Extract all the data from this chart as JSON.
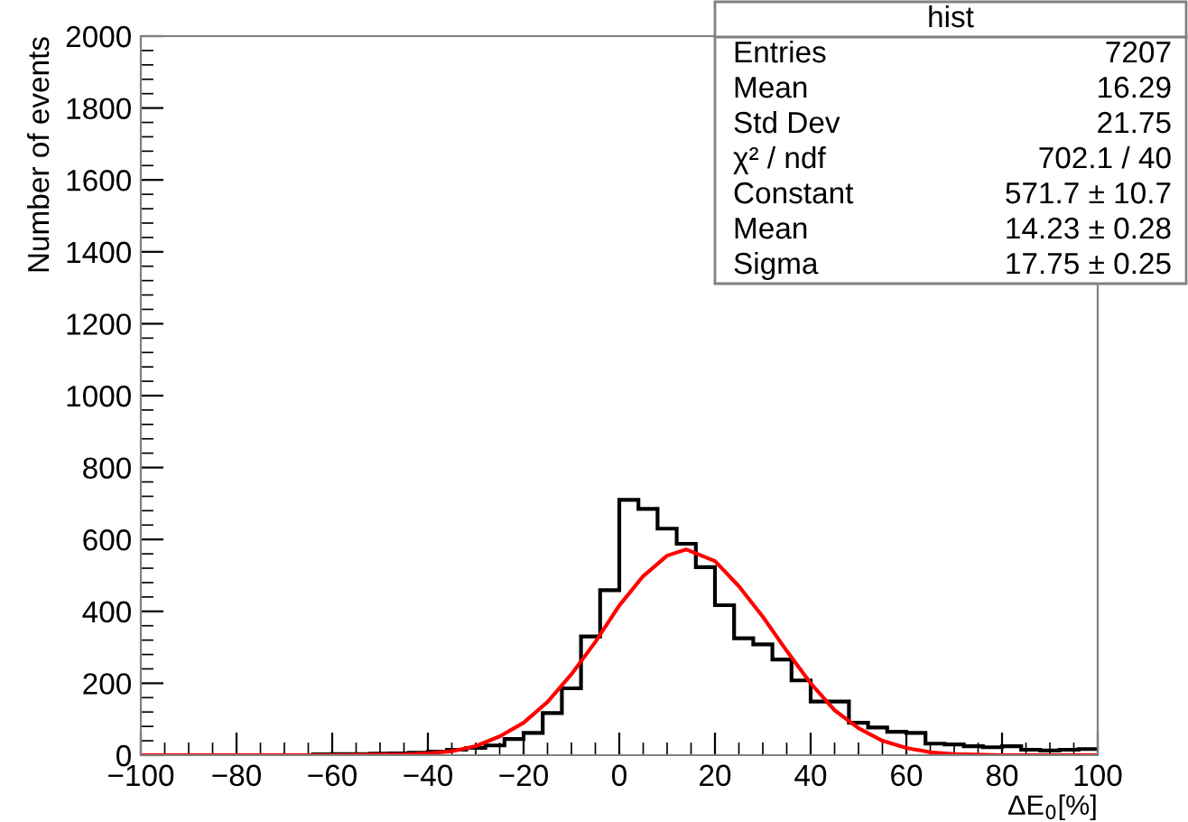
{
  "chart_data": {
    "type": "histogram",
    "xlabel": "ΔE$_{0}$[%]",
    "ylabel": "Number of events",
    "xlim": [
      -100,
      100
    ],
    "xticks": [
      -100,
      -80,
      -60,
      -40,
      -20,
      0,
      20,
      40,
      60,
      80,
      100
    ],
    "ylim": [
      0,
      2000
    ],
    "yticks": [
      0,
      200,
      400,
      600,
      800,
      1000,
      1200,
      1400,
      1600,
      1800,
      2000
    ],
    "color": "#000000",
    "bins": [
      -100,
      -96,
      -92,
      -88,
      -84,
      -80,
      -76,
      -72,
      -68,
      -64,
      -60,
      -56,
      -52,
      -48,
      -44,
      -40,
      -36,
      -32,
      -28,
      -24,
      -20,
      -16,
      -12,
      -8,
      -4,
      0,
      4,
      8,
      12,
      16,
      20,
      24,
      28,
      32,
      36,
      40,
      44,
      48,
      52,
      56,
      60,
      64,
      68,
      72,
      76,
      80,
      84,
      88,
      92,
      96,
      100
    ],
    "values": [
      0,
      0,
      0,
      0,
      0,
      0,
      0,
      0,
      0,
      2,
      3,
      3,
      4,
      5,
      7,
      10,
      15,
      20,
      27,
      45,
      62,
      117,
      186,
      330,
      459,
      710,
      685,
      630,
      588,
      523,
      417,
      325,
      308,
      266,
      208,
      149,
      149,
      90,
      77,
      65,
      62,
      32,
      30,
      25,
      22,
      25,
      15,
      13,
      15,
      17
    ],
    "series": [
      {
        "type": "line",
        "color": "#ff0000",
        "x": [
          -100,
          -60,
          -45,
          -40,
          -35,
          -30,
          -25,
          -20,
          -15,
          -10,
          -5,
          0,
          5,
          10,
          14,
          20,
          25,
          30,
          35,
          40,
          45,
          50,
          55,
          60,
          65,
          70,
          80,
          100
        ],
        "values": [
          0,
          0,
          2,
          5,
          11,
          25,
          52,
          90,
          148,
          225,
          315,
          416,
          498,
          555,
          572,
          540,
          470,
          385,
          290,
          200,
          125,
          75,
          40,
          20,
          8,
          3,
          0,
          0
        ]
      }
    ],
    "annotations": [
      "hist",
      "Entries",
      "7207",
      "Mean",
      "16.29",
      "Std Dev",
      "21.75",
      "χ² / ndf",
      "702.1 / 40",
      "Constant",
      "571.7 ± 10.7",
      "Mean",
      "14.23 ± 0.28",
      "Sigma",
      "17.75 ± 0.25"
    ]
  }
}
